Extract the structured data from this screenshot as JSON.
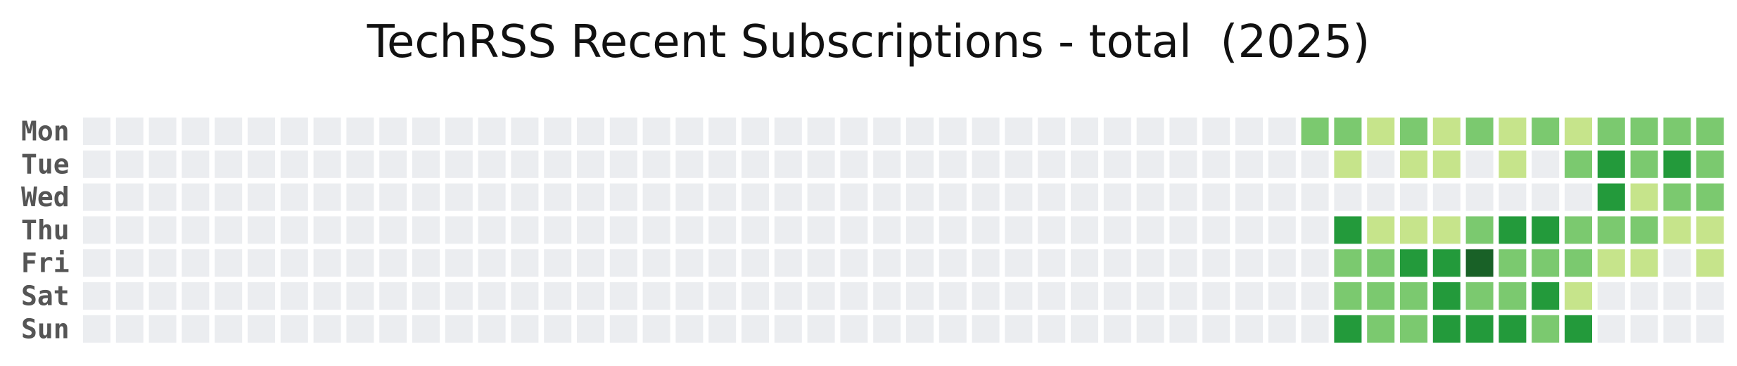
{
  "chart_data": {
    "type": "heatmap",
    "title": "TechRSS Recent Subscriptions - total  (2025)",
    "y_labels": [
      "Mon",
      "Tue",
      "Wed",
      "Thu",
      "Fri",
      "Sat",
      "Sun"
    ],
    "n_columns": 50,
    "empty_color": "#ebedf0",
    "color_scale": [
      "#ebedf0",
      "#c6e48b",
      "#7bc96f",
      "#239a3b",
      "#196127"
    ],
    "levels_by_day": [
      [
        0,
        0,
        0,
        0,
        0,
        0,
        0,
        0,
        0,
        0,
        0,
        0,
        0,
        0,
        0,
        0,
        0,
        0,
        0,
        0,
        0,
        0,
        0,
        0,
        0,
        0,
        0,
        0,
        0,
        0,
        0,
        0,
        0,
        0,
        0,
        0,
        0,
        2,
        2,
        1,
        2,
        1,
        2,
        1,
        2,
        1,
        2,
        2,
        2,
        2
      ],
      [
        0,
        0,
        0,
        0,
        0,
        0,
        0,
        0,
        0,
        0,
        0,
        0,
        0,
        0,
        0,
        0,
        0,
        0,
        0,
        0,
        0,
        0,
        0,
        0,
        0,
        0,
        0,
        0,
        0,
        0,
        0,
        0,
        0,
        0,
        0,
        0,
        0,
        0,
        1,
        0,
        1,
        1,
        0,
        1,
        0,
        2,
        3,
        2,
        3,
        2
      ],
      [
        0,
        0,
        0,
        0,
        0,
        0,
        0,
        0,
        0,
        0,
        0,
        0,
        0,
        0,
        0,
        0,
        0,
        0,
        0,
        0,
        0,
        0,
        0,
        0,
        0,
        0,
        0,
        0,
        0,
        0,
        0,
        0,
        0,
        0,
        0,
        0,
        0,
        0,
        0,
        0,
        0,
        0,
        0,
        0,
        0,
        0,
        3,
        1,
        2,
        2
      ],
      [
        0,
        0,
        0,
        0,
        0,
        0,
        0,
        0,
        0,
        0,
        0,
        0,
        0,
        0,
        0,
        0,
        0,
        0,
        0,
        0,
        0,
        0,
        0,
        0,
        0,
        0,
        0,
        0,
        0,
        0,
        0,
        0,
        0,
        0,
        0,
        0,
        0,
        0,
        3,
        1,
        1,
        1,
        2,
        3,
        3,
        2,
        2,
        2,
        1,
        1
      ],
      [
        0,
        0,
        0,
        0,
        0,
        0,
        0,
        0,
        0,
        0,
        0,
        0,
        0,
        0,
        0,
        0,
        0,
        0,
        0,
        0,
        0,
        0,
        0,
        0,
        0,
        0,
        0,
        0,
        0,
        0,
        0,
        0,
        0,
        0,
        0,
        0,
        0,
        0,
        2,
        2,
        3,
        3,
        4,
        2,
        2,
        2,
        1,
        1,
        0,
        1
      ],
      [
        0,
        0,
        0,
        0,
        0,
        0,
        0,
        0,
        0,
        0,
        0,
        0,
        0,
        0,
        0,
        0,
        0,
        0,
        0,
        0,
        0,
        0,
        0,
        0,
        0,
        0,
        0,
        0,
        0,
        0,
        0,
        0,
        0,
        0,
        0,
        0,
        0,
        0,
        2,
        2,
        2,
        3,
        2,
        2,
        3,
        1,
        0,
        0,
        0,
        0
      ],
      [
        0,
        0,
        0,
        0,
        0,
        0,
        0,
        0,
        0,
        0,
        0,
        0,
        0,
        0,
        0,
        0,
        0,
        0,
        0,
        0,
        0,
        0,
        0,
        0,
        0,
        0,
        0,
        0,
        0,
        0,
        0,
        0,
        0,
        0,
        0,
        0,
        0,
        0,
        3,
        2,
        2,
        3,
        3,
        3,
        2,
        3,
        0,
        0,
        0,
        0
      ]
    ],
    "grid": false,
    "legend": "none"
  }
}
